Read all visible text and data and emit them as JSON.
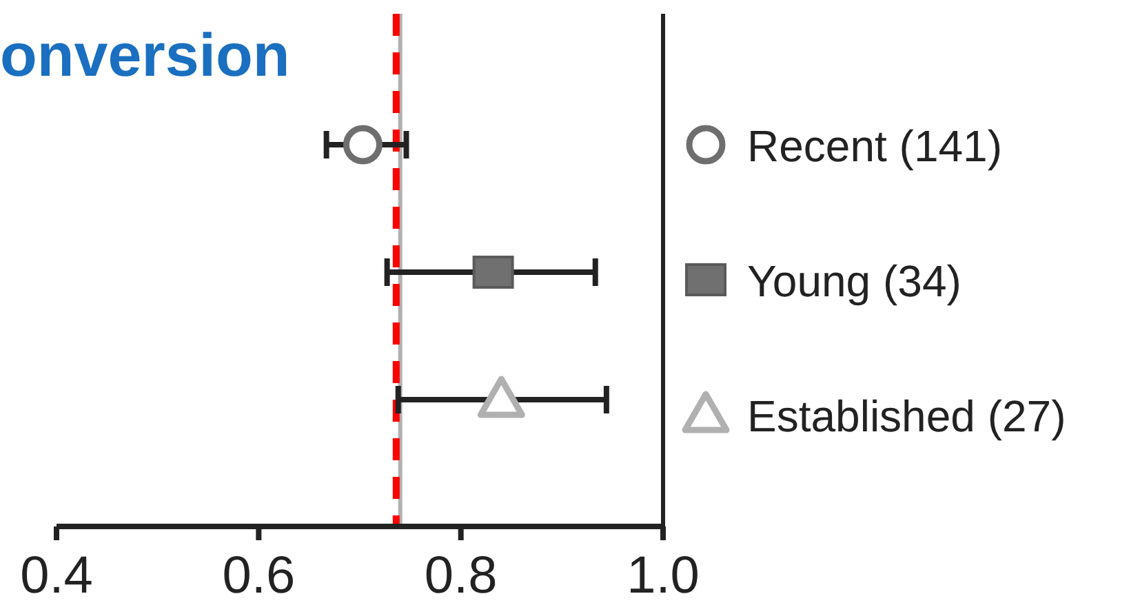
{
  "chart_data": {
    "type": "scatter",
    "title": "onversion",
    "orientation": "horizontal",
    "categories": [
      null,
      null,
      null
    ],
    "xlim": [
      0.4,
      1.0
    ],
    "xticks": [
      {
        "value": 0.4,
        "label": "0.4"
      },
      {
        "value": 0.6,
        "label": "0.6"
      },
      {
        "value": 0.8,
        "label": "0.8"
      },
      {
        "value": 1,
        "label": "1.0"
      }
    ],
    "legend": "right",
    "series": [
      {
        "name": "Recent (141)",
        "color": "#6e6e6e",
        "marker": "circle",
        "values": [
          0.703,
          null,
          null
        ],
        "errors": [
          [
            0.667,
            0.746
          ],
          null,
          null
        ]
      },
      {
        "name": "Young (34)",
        "color": "#707070",
        "marker": "square",
        "values": [
          null,
          0.832,
          null
        ],
        "errors": [
          null,
          [
            0.727,
            0.933
          ],
          null
        ]
      },
      {
        "name": "Established (27)",
        "color": "#b0b0b0",
        "marker": "triangle",
        "values": [
          null,
          null,
          0.84
        ],
        "errors": [
          null,
          null,
          [
            0.738,
            0.944
          ]
        ]
      }
    ],
    "ref_lines": [
      {
        "axis": "x",
        "value": 0.74,
        "color": "#b0b0b0",
        "line_style": "solid"
      },
      {
        "axis": "x",
        "value": 0.736,
        "color": "#ff0000",
        "line_style": "dashed"
      },
      {
        "axis": "x",
        "value": 1.0,
        "color": "#222222",
        "line_style": "solid"
      }
    ]
  }
}
